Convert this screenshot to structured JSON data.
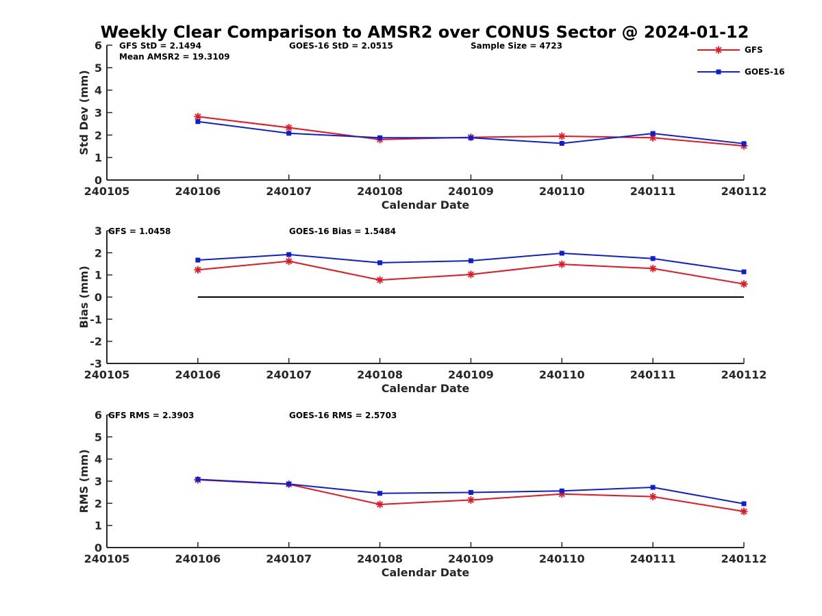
{
  "figure": {
    "title": "Weekly Clear Comparison to AMSR2 over CONUS Sector @ 2024-01-12"
  },
  "colors": {
    "GFS": "#e8141f",
    "GOES-16": "#0d1fd2",
    "zero_line": "#000000"
  },
  "legend": {
    "placement": "top-right",
    "entries": [
      {
        "label": "GFS",
        "marker": "asterisk"
      },
      {
        "label": "GOES-16",
        "marker": "square"
      }
    ]
  },
  "chart_data": [
    {
      "type": "line",
      "ylabel": "Std Dev (mm)",
      "xlabel": "Calendar Date",
      "xtick_labels": [
        "240105",
        "240106",
        "240107",
        "240108",
        "240109",
        "240110",
        "240111",
        "240112"
      ],
      "ylim": [
        0,
        6
      ],
      "yticks": [
        "0",
        "1",
        "2",
        "3",
        "4",
        "5",
        "6"
      ],
      "grid": false,
      "annotations": [
        "GFS StD = 2.1494",
        "GOES-16 StD = 2.0515",
        "Sample Size = 4723",
        "Mean AMSR2 = 19.3109"
      ],
      "series": [
        {
          "name": "GFS",
          "values": [
            2.82,
            2.33,
            1.8,
            1.9,
            1.95,
            1.88,
            1.52
          ]
        },
        {
          "name": "GOES-16",
          "values": [
            2.6,
            2.08,
            1.88,
            1.88,
            1.63,
            2.07,
            1.62
          ]
        }
      ]
    },
    {
      "type": "line",
      "ylabel": "Bias (mm)",
      "xlabel": "Calendar Date",
      "xtick_labels": [
        "240105",
        "240106",
        "240107",
        "240108",
        "240109",
        "240110",
        "240111",
        "240112"
      ],
      "ylim": [
        -3,
        3
      ],
      "yticks": [
        "-3",
        "-2",
        "-1",
        "0",
        "1",
        "2",
        "3"
      ],
      "grid": false,
      "zero_line": true,
      "annotations": [
        "GFS = 1.0458",
        "GOES-16 Bias  = 1.5484"
      ],
      "series": [
        {
          "name": "GFS",
          "values": [
            1.23,
            1.62,
            0.77,
            1.02,
            1.48,
            1.29,
            0.59
          ]
        },
        {
          "name": "GOES-16",
          "values": [
            1.67,
            1.92,
            1.55,
            1.64,
            1.98,
            1.74,
            1.14
          ]
        }
      ]
    },
    {
      "type": "line",
      "ylabel": "RMS (mm)",
      "xlabel": "Calendar Date",
      "xtick_labels": [
        "240105",
        "240106",
        "240107",
        "240108",
        "240109",
        "240110",
        "240111",
        "240112"
      ],
      "ylim": [
        0,
        6
      ],
      "yticks": [
        "0",
        "1",
        "2",
        "3",
        "4",
        "5",
        "6"
      ],
      "grid": false,
      "annotations": [
        "GFS RMS = 2.3903",
        "GOES-16 RMS = 2.5703"
      ],
      "series": [
        {
          "name": "GFS",
          "values": [
            3.06,
            2.86,
            1.95,
            2.15,
            2.42,
            2.3,
            1.63
          ]
        },
        {
          "name": "GOES-16",
          "values": [
            3.08,
            2.87,
            2.45,
            2.49,
            2.56,
            2.72,
            1.98
          ]
        }
      ]
    }
  ]
}
